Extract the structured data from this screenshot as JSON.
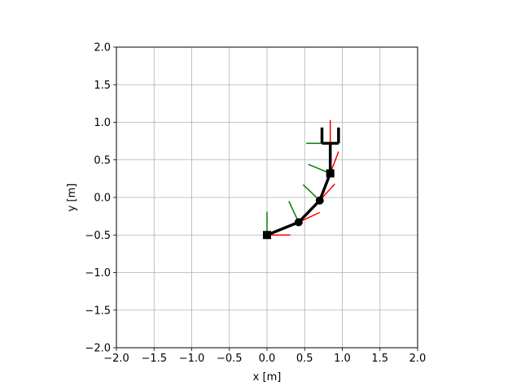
{
  "chart_data": {
    "type": "line",
    "title": "",
    "xlabel": "x [m]",
    "ylabel": "y [m]",
    "xlim": [
      -2.0,
      2.0
    ],
    "ylim": [
      -2.0,
      2.0
    ],
    "xticks": [
      "−2.0",
      "−1.5",
      "−1.0",
      "−0.5",
      "0.0",
      "0.5",
      "1.0",
      "1.5",
      "2.0"
    ],
    "yticks": [
      "−2.0",
      "−1.5",
      "−1.0",
      "−0.5",
      "0.0",
      "0.5",
      "1.0",
      "1.5",
      "2.0"
    ],
    "grid": true,
    "arm": {
      "color": "#000000",
      "joints": [
        {
          "x": 0.0,
          "y": -0.5,
          "marker": "square"
        },
        {
          "x": 0.42,
          "y": -0.33,
          "marker": "circle"
        },
        {
          "x": 0.7,
          "y": -0.04,
          "marker": "circle"
        },
        {
          "x": 0.84,
          "y": 0.32,
          "marker": "square"
        },
        {
          "x": 0.84,
          "y": 0.72,
          "marker": "none"
        }
      ],
      "gripper": {
        "base": [
          [
            0.73,
            0.72
          ],
          [
            0.95,
            0.72
          ]
        ],
        "left_finger": [
          [
            0.73,
            0.72
          ],
          [
            0.73,
            0.93
          ]
        ],
        "right_finger": [
          [
            0.95,
            0.72
          ],
          [
            0.95,
            0.93
          ]
        ]
      }
    },
    "frames": [
      {
        "x": 0.0,
        "y": -0.5,
        "x_end": [
          0.31,
          -0.5
        ],
        "y_end": [
          0.0,
          -0.19
        ]
      },
      {
        "x": 0.42,
        "y": -0.33,
        "x_end": [
          0.7,
          -0.2
        ],
        "y_end": [
          0.29,
          -0.05
        ]
      },
      {
        "x": 0.7,
        "y": -0.04,
        "x_end": [
          0.9,
          0.18
        ],
        "y_end": [
          0.48,
          0.17
        ]
      },
      {
        "x": 0.84,
        "y": 0.32,
        "x_end": [
          0.95,
          0.61
        ],
        "y_end": [
          0.55,
          0.44
        ]
      },
      {
        "x": 0.84,
        "y": 0.72,
        "x_end": [
          0.84,
          1.03
        ],
        "y_end": [
          0.52,
          0.72
        ]
      }
    ],
    "colors": {
      "x_axis": "#ff0000",
      "y_axis": "#008000",
      "grid": "#b0b0b0"
    }
  }
}
